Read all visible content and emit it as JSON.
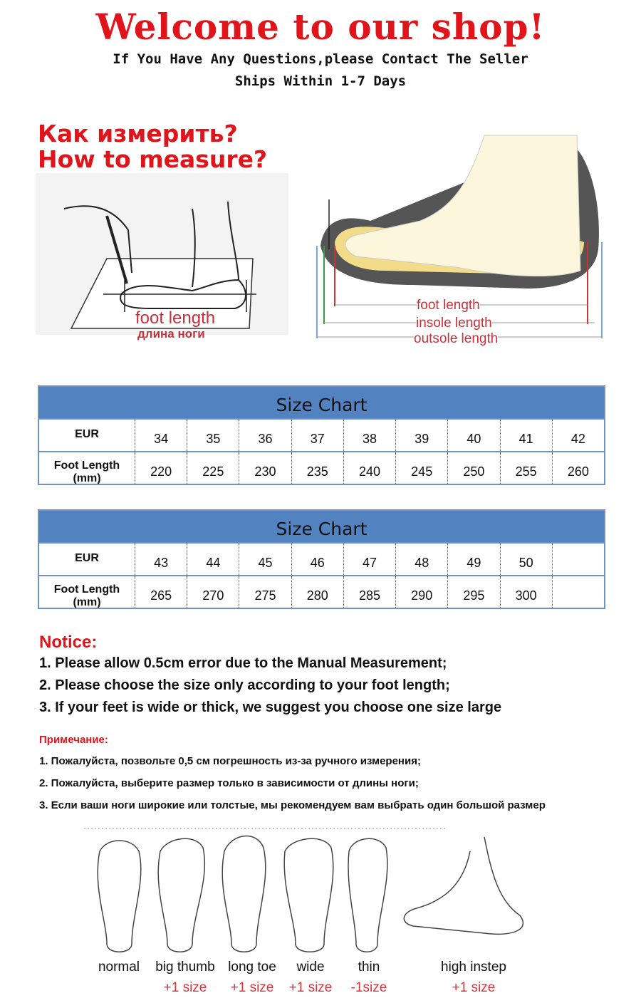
{
  "header": {
    "title": "Welcome to our shop!",
    "line1": "If You Have Any Questions,please Contact The Seller",
    "line2": "Ships Within 1-7 Days"
  },
  "measure": {
    "title_ru": "Как измерить?",
    "title_en": "How to measure?",
    "left_label_en": "foot length",
    "left_label_ru": "длина ноги",
    "right_labels": [
      "foot length",
      "insole length",
      "outsole length"
    ]
  },
  "tables": [
    {
      "title": "Size Chart",
      "row_labels": [
        "EUR",
        "Foot Length (mm)"
      ],
      "eur": [
        "34",
        "35",
        "36",
        "37",
        "38",
        "39",
        "40",
        "41",
        "42"
      ],
      "mm": [
        "220",
        "225",
        "230",
        "235",
        "240",
        "245",
        "250",
        "255",
        "260"
      ]
    },
    {
      "title": "Size Chart",
      "row_labels": [
        "EUR",
        "Foot Length (mm)"
      ],
      "eur": [
        "43",
        "44",
        "45",
        "46",
        "47",
        "48",
        "49",
        "50",
        ""
      ],
      "mm": [
        "265",
        "270",
        "275",
        "280",
        "285",
        "290",
        "295",
        "300",
        ""
      ]
    }
  ],
  "notice": {
    "title": "Notice:",
    "items": [
      "1. Please allow 0.5cm error due to the Manual Measurement;",
      "2. Please choose the size only according to your foot length;",
      "3. If your feet is wide or thick, we suggest you choose one size large"
    ]
  },
  "notice_ru": {
    "title": "Примечание:",
    "items": [
      "1. Пожалуйста, позвольте 0,5 см погрешность из-за ручного измерения;",
      "2. Пожалуйста, выберите размер только в зависимости от длины ноги;",
      "3. Если ваши ноги широкие или толстые, мы рекомендуем вам выбрать один большой размер"
    ]
  },
  "foot_types": [
    {
      "label": "normal",
      "size": ""
    },
    {
      "label": "big thumb",
      "size": "+1 size"
    },
    {
      "label": "long toe",
      "size": "+1 size"
    },
    {
      "label": "wide",
      "size": "+1 size"
    },
    {
      "label": "thin",
      "size": "-1size"
    },
    {
      "label": "high instep",
      "size": "+1 size"
    }
  ],
  "colors": {
    "accent_red": "#e0141b",
    "table_blue": "#5382c1",
    "size_red": "#d8363d"
  }
}
